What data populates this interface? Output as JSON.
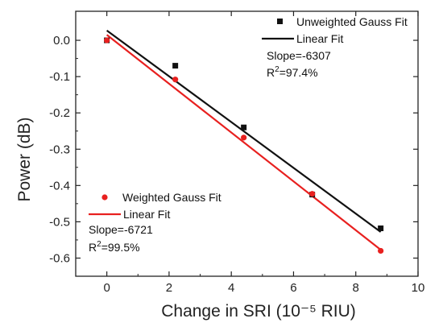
{
  "chart_data": {
    "type": "scatter",
    "xlabel": "Change in SRI (10⁻⁵ RIU)",
    "ylabel": "Power (dB)",
    "xlim": [
      -1,
      10
    ],
    "ylim": [
      -0.65,
      0.08
    ],
    "xticks": [
      0,
      2,
      4,
      6,
      8,
      10
    ],
    "xtick_labels": [
      "0",
      "2",
      "4",
      "6",
      "8",
      "10"
    ],
    "yticks": [
      0.0,
      -0.1,
      -0.2,
      -0.3,
      -0.4,
      -0.5,
      -0.6
    ],
    "ytick_labels": [
      "0.0",
      "-0.1",
      "-0.2",
      "-0.3",
      "-0.4",
      "-0.5",
      "-0.6"
    ],
    "grid": false,
    "series": [
      {
        "name": "Unweighted Gauss Fit",
        "marker": "square",
        "color": "#111111",
        "x": [
          0,
          2.2,
          4.4,
          6.6,
          8.8
        ],
        "y": [
          0.0,
          -0.07,
          -0.24,
          -0.425,
          -0.518
        ],
        "fit": {
          "name": "Linear Fit",
          "x": [
            0,
            8.8
          ],
          "y": [
            0.027,
            -0.528
          ]
        },
        "annotations": [
          "Slope=-6307",
          "R",
          "2",
          "=97.4%"
        ]
      },
      {
        "name": "Weighted Gauss Fit",
        "marker": "circle",
        "color": "#e8201f",
        "x": [
          0,
          2.2,
          4.4,
          6.6,
          8.8
        ],
        "y": [
          0.0,
          -0.108,
          -0.268,
          -0.423,
          -0.58
        ],
        "fit": {
          "name": "Linear Fit",
          "x": [
            0,
            8.8
          ],
          "y": [
            0.015,
            -0.577
          ]
        },
        "annotations": [
          "Slope=-6721",
          "R",
          "2",
          "=99.5%"
        ]
      }
    ],
    "legend_placement": [
      "top-right",
      "bottom-left"
    ]
  }
}
